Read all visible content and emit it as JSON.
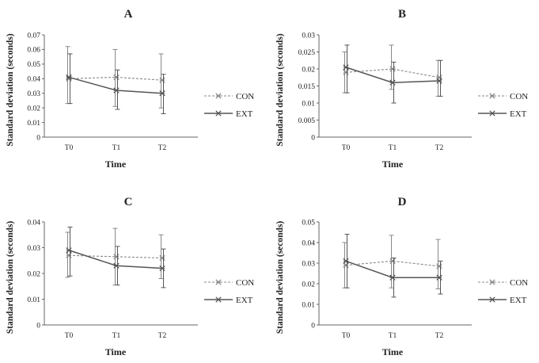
{
  "figure": {
    "background": "#ffffff"
  },
  "chart_data": [
    {
      "id": "A",
      "type": "line",
      "title": "A",
      "xlabel": "Time",
      "ylabel": "Standard deviation (seconds)",
      "categories": [
        "T0",
        "T1",
        "T2"
      ],
      "ylim": [
        0,
        0.07
      ],
      "yticks": [
        0,
        0.01,
        0.02,
        0.03,
        0.04,
        0.05,
        0.06,
        0.07
      ],
      "ytick_labels": [
        "0",
        "0.01",
        "0.02",
        "0.03",
        "0.04",
        "0.05",
        "0.06",
        "0.07"
      ],
      "series": [
        {
          "name": "CON",
          "style": "dashed",
          "color": "#888888",
          "values": [
            0.04,
            0.041,
            0.039
          ],
          "err_low": [
            0.017,
            0.02,
            0.019
          ],
          "err_high": [
            0.022,
            0.019,
            0.018
          ]
        },
        {
          "name": "EXT",
          "style": "solid",
          "color": "#555555",
          "values": [
            0.041,
            0.032,
            0.03
          ],
          "err_low": [
            0.018,
            0.013,
            0.014
          ],
          "err_high": [
            0.016,
            0.014,
            0.013
          ]
        }
      ],
      "legend": "right"
    },
    {
      "id": "B",
      "type": "line",
      "title": "B",
      "xlabel": "Time",
      "ylabel": "Standard deviation (seconds)",
      "categories": [
        "T0",
        "T1",
        "T2"
      ],
      "ylim": [
        0,
        0.03
      ],
      "yticks": [
        0,
        0.005,
        0.01,
        0.015,
        0.02,
        0.025,
        0.03
      ],
      "ytick_labels": [
        "0",
        "0.005",
        "0.01",
        "0.015",
        "0.02",
        "0.025",
        "0.03"
      ],
      "series": [
        {
          "name": "CON",
          "style": "dashed",
          "color": "#888888",
          "values": [
            0.019,
            0.02,
            0.0175
          ],
          "err_low": [
            0.006,
            0.006,
            0.0055
          ],
          "err_high": [
            0.006,
            0.007,
            0.005
          ]
        },
        {
          "name": "EXT",
          "style": "solid",
          "color": "#555555",
          "values": [
            0.0205,
            0.016,
            0.0165
          ],
          "err_low": [
            0.0075,
            0.006,
            0.0045
          ],
          "err_high": [
            0.0065,
            0.006,
            0.006
          ]
        }
      ],
      "legend": "right"
    },
    {
      "id": "C",
      "type": "line",
      "title": "C",
      "xlabel": "Time",
      "ylabel": "Standard deviation (seconds)",
      "categories": [
        "T0",
        "T1",
        "T2"
      ],
      "ylim": [
        0,
        0.04
      ],
      "yticks": [
        0,
        0.01,
        0.02,
        0.03,
        0.04
      ],
      "ytick_labels": [
        "0",
        "0.01",
        "0.02",
        "0.03",
        "0.04"
      ],
      "series": [
        {
          "name": "CON",
          "style": "dashed",
          "color": "#888888",
          "values": [
            0.027,
            0.0265,
            0.026
          ],
          "err_low": [
            0.0085,
            0.011,
            0.008
          ],
          "err_high": [
            0.009,
            0.011,
            0.009
          ]
        },
        {
          "name": "EXT",
          "style": "solid",
          "color": "#555555",
          "values": [
            0.029,
            0.023,
            0.022
          ],
          "err_low": [
            0.01,
            0.0075,
            0.0075
          ],
          "err_high": [
            0.009,
            0.0075,
            0.0075
          ]
        }
      ],
      "legend": "right"
    },
    {
      "id": "D",
      "type": "line",
      "title": "D",
      "xlabel": "Time",
      "ylabel": "Standard deviation (seconds)",
      "categories": [
        "T0",
        "T1",
        "T2"
      ],
      "ylim": [
        0,
        0.05
      ],
      "yticks": [
        0,
        0.01,
        0.02,
        0.03,
        0.04,
        0.05
      ],
      "ytick_labels": [
        "0",
        "0.01",
        "0.02",
        "0.03",
        "0.04",
        "0.05"
      ],
      "series": [
        {
          "name": "CON",
          "style": "dashed",
          "color": "#888888",
          "values": [
            0.029,
            0.031,
            0.0285
          ],
          "err_low": [
            0.011,
            0.013,
            0.011
          ],
          "err_high": [
            0.011,
            0.0125,
            0.013
          ]
        },
        {
          "name": "EXT",
          "style": "solid",
          "color": "#555555",
          "values": [
            0.031,
            0.023,
            0.023
          ],
          "err_low": [
            0.013,
            0.0095,
            0.008
          ],
          "err_high": [
            0.013,
            0.0095,
            0.008
          ]
        }
      ],
      "legend": "right"
    }
  ]
}
